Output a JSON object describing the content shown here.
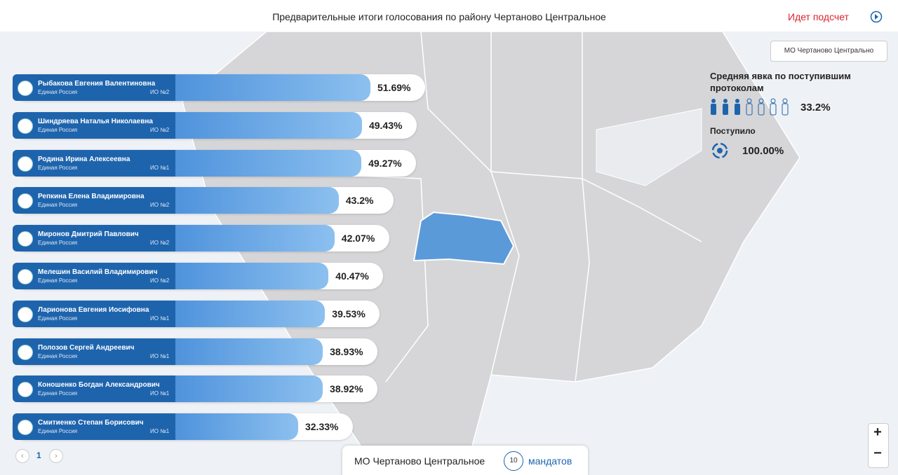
{
  "header": {
    "title": "Предварительные итоги голосования по району Чертаново Центральное",
    "status": "Идет подсчет"
  },
  "district_select": "МО Чертаново Центрально",
  "turnout": {
    "label": "Средняя явка по поступившим протоколам",
    "value_label": "33.2%",
    "received_label": "Поступило",
    "received_value": "100.00%"
  },
  "candidates": [
    {
      "name": "Рыбакова Евгения Валентиновна",
      "party": "Единая Россия",
      "district": "ИО №2",
      "value": 51.69,
      "value_label": "51.69%"
    },
    {
      "name": "Шиндряева Наталья Николаевна",
      "party": "Единая Россия",
      "district": "ИО №2",
      "value": 49.43,
      "value_label": "49.43%"
    },
    {
      "name": "Родина Ирина Алексеевна",
      "party": "Единая Россия",
      "district": "ИО №1",
      "value": 49.27,
      "value_label": "49.27%"
    },
    {
      "name": "Репкина Елена Владимировна",
      "party": "Единая Россия",
      "district": "ИО №2",
      "value": 43.2,
      "value_label": "43.2%"
    },
    {
      "name": "Миронов Дмитрий Павлович",
      "party": "Единая Россия",
      "district": "ИО №2",
      "value": 42.07,
      "value_label": "42.07%"
    },
    {
      "name": "Мелешин Василий Владимирович",
      "party": "Единая Россия",
      "district": "ИО №2",
      "value": 40.47,
      "value_label": "40.47%"
    },
    {
      "name": "Ларионова Евгения Иосифовна",
      "party": "Единая Россия",
      "district": "ИО №1",
      "value": 39.53,
      "value_label": "39.53%"
    },
    {
      "name": "Полозов Сергей Андреевич",
      "party": "Единая Россия",
      "district": "ИО №1",
      "value": 38.93,
      "value_label": "38.93%"
    },
    {
      "name": "Коношенко Богдан Александрович",
      "party": "Единая Россия",
      "district": "ИО №1",
      "value": 38.92,
      "value_label": "38.92%"
    },
    {
      "name": "Смитиенко Степан Борисович",
      "party": "Единая Россия",
      "district": "ИО №1",
      "value": 32.33,
      "value_label": "32.33%"
    }
  ],
  "pager": {
    "page": "1"
  },
  "footer": {
    "district": "МО Чертаново Центральное",
    "mandates": "10",
    "mandates_label": "мандатов"
  },
  "zoom": {
    "in": "+",
    "out": "−"
  }
}
